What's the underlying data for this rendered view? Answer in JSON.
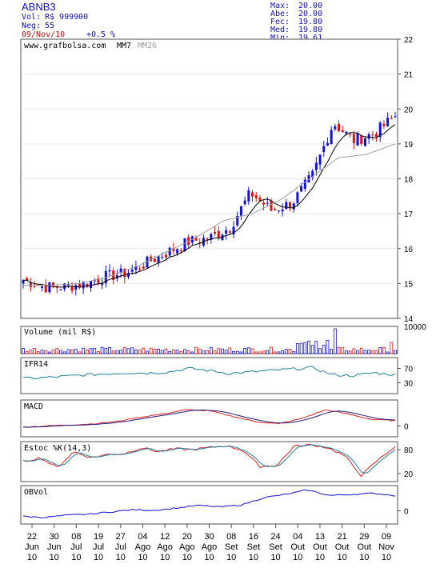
{
  "header": {
    "ticker": "ABNB3",
    "vol_label": "Vol:",
    "vol_value": "R$ 999900",
    "neg_label": "Neg:",
    "neg_value": "55",
    "date": "09/Nov/10",
    "change": "+0.5 %"
  },
  "stats": [
    {
      "label": "Max:",
      "value": "20.00"
    },
    {
      "label": "Abe:",
      "value": "20.00"
    },
    {
      "label": "Fec:",
      "value": "19.80"
    },
    {
      "label": "Med:",
      "value": "19.80"
    },
    {
      "label": "Min:",
      "value": "19.61"
    }
  ],
  "colors": {
    "up": "#1010e0",
    "down": "#e01010",
    "mm7": "#000000",
    "mm26": "#a0a0a0",
    "frame": "#505050",
    "grid": "#e8e8e8",
    "ifr": "#2080a0",
    "macd": "#e02020",
    "signal": "#202080",
    "stoch_k": "#e02020",
    "stoch_d": "#2080a0",
    "obv": "#1010d0"
  },
  "chart_data": [
    {
      "type": "candlestick",
      "title": "",
      "source_label": "www.grafbolsa.com",
      "legend": [
        "MM7",
        "MM26"
      ],
      "ylim": [
        14,
        22
      ],
      "yticks": [
        14,
        15,
        16,
        17,
        18,
        19,
        20,
        21,
        22
      ],
      "xticks": [
        {
          "day": "22",
          "month": "Jun",
          "year": "10"
        },
        {
          "day": "30",
          "month": "Jun",
          "year": "10"
        },
        {
          "day": "08",
          "month": "Jul",
          "year": "10"
        },
        {
          "day": "19",
          "month": "Jul",
          "year": "10"
        },
        {
          "day": "27",
          "month": "Jul",
          "year": "10"
        },
        {
          "day": "04",
          "month": "Ago",
          "year": "10"
        },
        {
          "day": "12",
          "month": "Ago",
          "year": "10"
        },
        {
          "day": "20",
          "month": "Ago",
          "year": "10"
        },
        {
          "day": "30",
          "month": "Ago",
          "year": "10"
        },
        {
          "day": "08",
          "month": "Set",
          "year": "10"
        },
        {
          "day": "16",
          "month": "Set",
          "year": "10"
        },
        {
          "day": "24",
          "month": "Set",
          "year": "10"
        },
        {
          "day": "04",
          "month": "Out",
          "year": "10"
        },
        {
          "day": "13",
          "month": "Out",
          "year": "10"
        },
        {
          "day": "21",
          "month": "Out",
          "year": "10"
        },
        {
          "day": "29",
          "month": "Out",
          "year": "10"
        },
        {
          "day": "09",
          "month": "Nov",
          "year": "10"
        }
      ],
      "close_anchors": [
        15.1,
        14.9,
        14.9,
        15.0,
        15.2,
        15.3,
        15.6,
        15.9,
        16.2,
        16.3,
        16.6,
        17.6,
        17.1,
        17.3,
        18.1,
        19.6,
        19.1,
        19.3,
        19.8
      ],
      "mm26_start": 14.95,
      "mm26_end": 19.0
    },
    {
      "type": "bar",
      "title": "Volume (mil R$)",
      "ylim": [
        0,
        10000
      ],
      "yticks": [
        10000
      ]
    },
    {
      "type": "line",
      "title": "IFR14",
      "ylim": [
        0,
        100
      ],
      "yticks": [
        70,
        30
      ],
      "anchors": [
        42,
        44,
        48,
        52,
        55,
        58,
        57,
        60,
        70,
        64,
        56,
        60,
        64,
        68,
        72,
        52,
        50,
        58,
        52
      ]
    },
    {
      "type": "line",
      "title": "MACD",
      "yticks": [
        0
      ],
      "anchors": [
        -0.05,
        0.0,
        0.05,
        0.1,
        0.2,
        0.4,
        0.55,
        0.75,
        0.7,
        0.45,
        0.2,
        0.1,
        0.35,
        0.75,
        0.55,
        0.3,
        0.25
      ]
    },
    {
      "type": "line",
      "title": "Estoc %K(14,3)",
      "ylim": [
        0,
        100
      ],
      "yticks": [
        80,
        20
      ],
      "anchors": [
        50,
        60,
        35,
        75,
        60,
        68,
        70,
        85,
        75,
        82,
        80,
        85,
        90,
        78,
        38,
        40,
        88,
        92,
        85,
        65,
        15,
        55,
        88
      ]
    },
    {
      "type": "line",
      "title": "OBVol",
      "yticks": [
        0
      ],
      "anchors": [
        -0.5,
        -0.6,
        -0.4,
        -0.3,
        -0.1,
        0.1,
        0.05,
        0.25,
        0.5,
        0.35,
        0.55,
        1.2,
        1.5,
        1.9,
        1.4,
        1.5,
        1.6,
        1.4
      ]
    }
  ]
}
